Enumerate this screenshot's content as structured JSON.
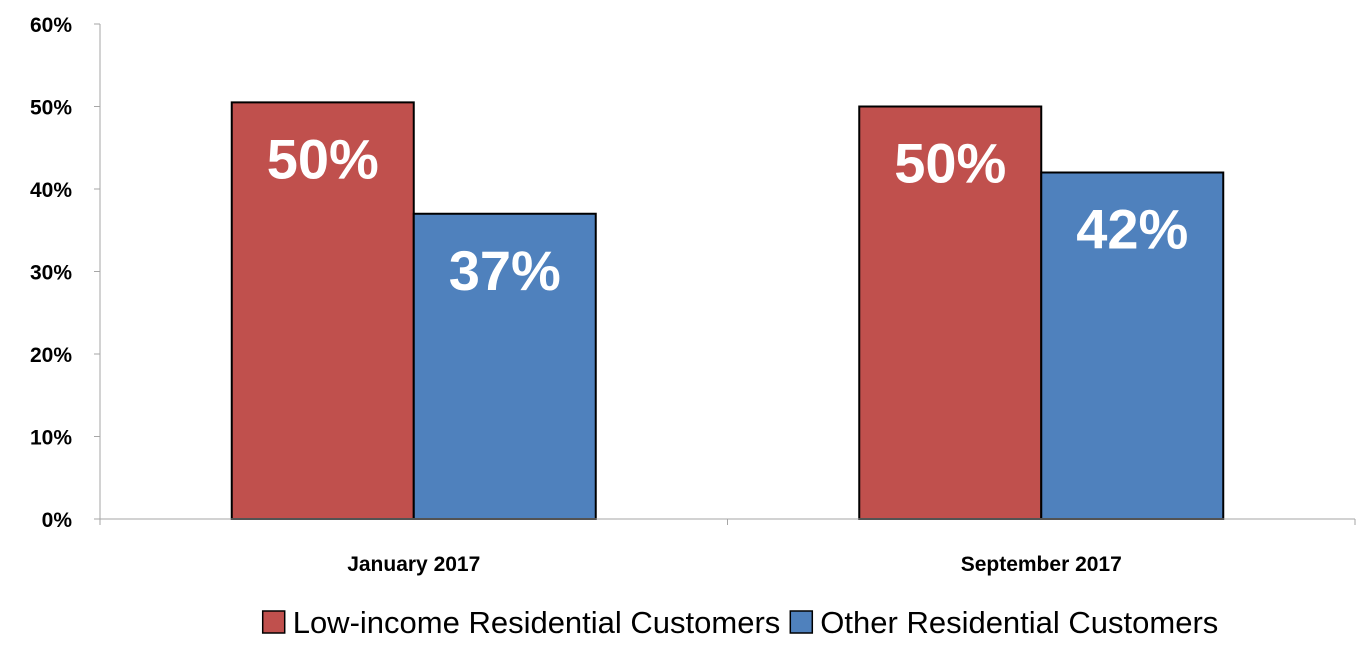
{
  "chart_data": {
    "type": "bar",
    "title": "",
    "xlabel": "",
    "ylabel": "",
    "categories": [
      "January 2017",
      "September 2017"
    ],
    "series": [
      {
        "name": "Low-income Residential Customers",
        "values": [
          50.5,
          50
        ],
        "labels": [
          "50%",
          "50%"
        ],
        "color": "#c0504d"
      },
      {
        "name": "Other Residential Customers",
        "values": [
          37,
          42
        ],
        "labels": [
          "37%",
          "42%"
        ],
        "color": "#4f81bd"
      }
    ],
    "ylim": [
      0,
      60
    ],
    "yticks": [
      0,
      10,
      20,
      30,
      40,
      50,
      60
    ],
    "ytick_labels": [
      "0%",
      "10%",
      "20%",
      "30%",
      "40%",
      "50%",
      "60%"
    ],
    "grid": false,
    "legend_position": "bottom"
  }
}
